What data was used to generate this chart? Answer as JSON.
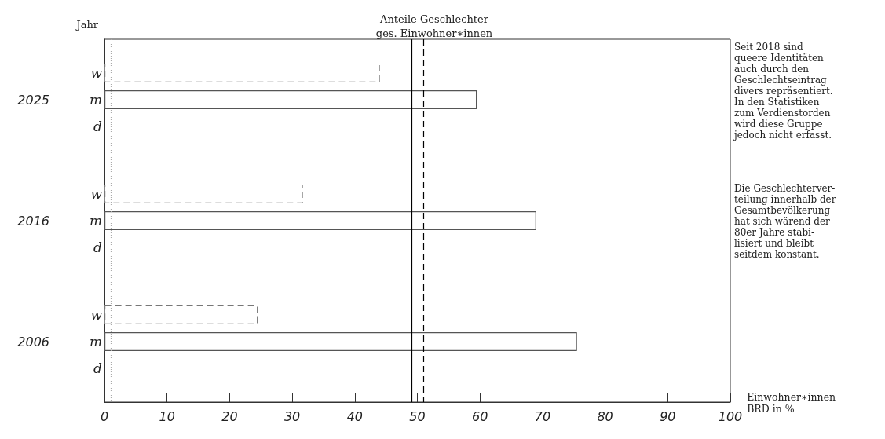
{
  "chart_data": {
    "type": "bar",
    "orientation": "horizontal",
    "title": "Anteile Geschlechter\nges. Einwohner∗innen",
    "ylabel": "Jahr",
    "xlabel": "Einwohner∗innen\nBRD in %",
    "categories": [
      "2025",
      "2016",
      "2006"
    ],
    "series": [
      {
        "name": "w",
        "color": "#777777",
        "line_style": "dashed",
        "values": [
          44.0,
          31.7,
          24.5
        ]
      },
      {
        "name": "m",
        "color": "#555555",
        "line_style": "solid",
        "values": [
          59.5,
          69.0,
          75.5
        ]
      },
      {
        "name": "d",
        "line_style": "solid",
        "values": [
          null,
          null,
          null
        ]
      }
    ],
    "xlim": [
      0,
      100
    ],
    "xticks": [
      0,
      10,
      20,
      30,
      40,
      50,
      60,
      70,
      80,
      90,
      100
    ],
    "grid": false,
    "legend": false,
    "ref_lines": [
      {
        "axis": "x",
        "value": 49.1,
        "color": "#000000",
        "line_style": "solid"
      },
      {
        "axis": "x",
        "value": 51.0,
        "color": "#000000",
        "line_style": "dashed"
      },
      {
        "axis": "x",
        "value": 1.0,
        "color": "#aaaaaa",
        "line_style": "dotted"
      }
    ],
    "annotations": [
      "Seit 2018 sind\nqueere Identitäten\nauch durch den\nGeschlechtseintrag\ndivers repräsentiert.\nIn den Statistiken\nzum Verdienstorden\nwird diese Gruppe\njedoch nicht erfasst.",
      "Die Geschlechterver-\nteilung innerhalb der\nGesamtbevölkerung\nhat sich wärend der\n80er Jahre stabi-\nlisiert und bleibt\nseitdem konstant."
    ]
  }
}
